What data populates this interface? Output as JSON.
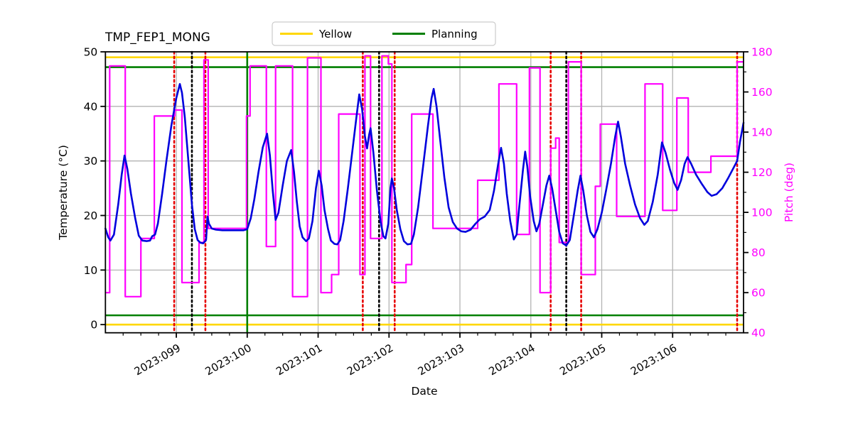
{
  "title": "TMP_FEP1_MONG",
  "legend": {
    "items": [
      {
        "label": "Yellow",
        "color": "#ffd700"
      },
      {
        "label": "Planning",
        "color": "#007f00"
      }
    ]
  },
  "colors": {
    "temperature_line": "#0000dd",
    "pitch_line": "#ff00ff",
    "yellow_limit": "#ffd700",
    "planning_limit": "#007f00",
    "red_event": "#e60000",
    "black_event": "#000000",
    "grid": "#b3b3b3",
    "axis": "#000000"
  },
  "chart_data": {
    "type": "line",
    "title": "TMP_FEP1_MONG",
    "xlabel": "Date",
    "ylabel_left": "Temperature (°C)",
    "ylabel_right": "Pitch (deg)",
    "x_range": [
      98,
      107
    ],
    "x_ticks": {
      "days": [
        99,
        100,
        101,
        102,
        103,
        104,
        105,
        106
      ],
      "labels": [
        "2023:099",
        "2023:100",
        "2023:101",
        "2023:102",
        "2023:103",
        "2023:104",
        "2023:105",
        "2023:106"
      ],
      "minor_step": 0.25
    },
    "y_left": {
      "range": [
        -1.5,
        50
      ],
      "ticks": [
        0,
        10,
        20,
        30,
        40,
        50
      ]
    },
    "y_right": {
      "range": [
        40,
        180
      ],
      "ticks": [
        40,
        60,
        80,
        100,
        120,
        140,
        160,
        180
      ],
      "minor_step": 10
    },
    "grid": true,
    "series": [
      {
        "name": "Temperature",
        "axis": "left",
        "style": "smooth",
        "color": "#0000dd",
        "points": [
          [
            98.0,
            17.6
          ],
          [
            98.04,
            16.0
          ],
          [
            98.07,
            15.4
          ],
          [
            98.12,
            16.5
          ],
          [
            98.18,
            22.0
          ],
          [
            98.23,
            27.5
          ],
          [
            98.27,
            31.0
          ],
          [
            98.31,
            28.5
          ],
          [
            98.36,
            24.0
          ],
          [
            98.42,
            19.5
          ],
          [
            98.47,
            16.3
          ],
          [
            98.52,
            15.4
          ],
          [
            98.58,
            15.3
          ],
          [
            98.63,
            15.4
          ],
          [
            98.66,
            16.2
          ],
          [
            98.7,
            16.5
          ],
          [
            98.74,
            18.5
          ],
          [
            98.8,
            24.0
          ],
          [
            98.86,
            30.0
          ],
          [
            98.93,
            36.5
          ],
          [
            99.0,
            41.5
          ],
          [
            99.05,
            44.1
          ],
          [
            99.08,
            42.5
          ],
          [
            99.12,
            38.0
          ],
          [
            99.17,
            30.0
          ],
          [
            99.22,
            22.0
          ],
          [
            99.26,
            17.5
          ],
          [
            99.3,
            15.5
          ],
          [
            99.34,
            15.0
          ],
          [
            99.38,
            14.9
          ],
          [
            99.42,
            15.5
          ],
          [
            99.44,
            19.8
          ],
          [
            99.46,
            18.5
          ],
          [
            99.5,
            17.6
          ],
          [
            99.56,
            17.4
          ],
          [
            99.65,
            17.3
          ],
          [
            99.75,
            17.3
          ],
          [
            99.85,
            17.3
          ],
          [
            99.95,
            17.3
          ],
          [
            100.0,
            17.5
          ],
          [
            100.05,
            19.5
          ],
          [
            100.1,
            23.0
          ],
          [
            100.16,
            28.0
          ],
          [
            100.22,
            32.5
          ],
          [
            100.28,
            35.0
          ],
          [
            100.32,
            31.0
          ],
          [
            100.36,
            24.5
          ],
          [
            100.4,
            19.2
          ],
          [
            100.44,
            20.5
          ],
          [
            100.5,
            25.5
          ],
          [
            100.56,
            30.0
          ],
          [
            100.62,
            32.0
          ],
          [
            100.66,
            28.0
          ],
          [
            100.7,
            22.5
          ],
          [
            100.74,
            18.0
          ],
          [
            100.78,
            16.0
          ],
          [
            100.83,
            15.3
          ],
          [
            100.87,
            15.8
          ],
          [
            100.92,
            19.0
          ],
          [
            100.97,
            25.0
          ],
          [
            101.01,
            28.2
          ],
          [
            101.05,
            25.5
          ],
          [
            101.09,
            21.0
          ],
          [
            101.14,
            17.5
          ],
          [
            101.18,
            15.4
          ],
          [
            101.23,
            14.8
          ],
          [
            101.27,
            14.7
          ],
          [
            101.31,
            15.5
          ],
          [
            101.36,
            19.0
          ],
          [
            101.42,
            25.0
          ],
          [
            101.48,
            31.5
          ],
          [
            101.54,
            38.0
          ],
          [
            101.58,
            42.2
          ],
          [
            101.62,
            39.5
          ],
          [
            101.66,
            34.5
          ],
          [
            101.69,
            32.3
          ],
          [
            101.72,
            34.8
          ],
          [
            101.74,
            36.0
          ],
          [
            101.78,
            31.5
          ],
          [
            101.83,
            24.5
          ],
          [
            101.88,
            19.0
          ],
          [
            101.92,
            16.2
          ],
          [
            101.95,
            15.8
          ],
          [
            101.99,
            18.5
          ],
          [
            102.02,
            25.0
          ],
          [
            102.04,
            26.8
          ],
          [
            102.07,
            25.0
          ],
          [
            102.11,
            21.0
          ],
          [
            102.16,
            17.5
          ],
          [
            102.21,
            15.3
          ],
          [
            102.26,
            14.7
          ],
          [
            102.31,
            14.8
          ],
          [
            102.35,
            16.5
          ],
          [
            102.41,
            21.5
          ],
          [
            102.48,
            29.0
          ],
          [
            102.55,
            36.5
          ],
          [
            102.6,
            41.5
          ],
          [
            102.63,
            43.2
          ],
          [
            102.67,
            40.0
          ],
          [
            102.72,
            34.0
          ],
          [
            102.78,
            27.0
          ],
          [
            102.84,
            21.5
          ],
          [
            102.9,
            18.8
          ],
          [
            102.96,
            17.6
          ],
          [
            103.02,
            17.1
          ],
          [
            103.08,
            17.0
          ],
          [
            103.15,
            17.4
          ],
          [
            103.22,
            18.5
          ],
          [
            103.28,
            19.3
          ],
          [
            103.35,
            19.8
          ],
          [
            103.42,
            21.0
          ],
          [
            103.48,
            24.5
          ],
          [
            103.54,
            29.5
          ],
          [
            103.58,
            32.4
          ],
          [
            103.62,
            29.5
          ],
          [
            103.66,
            24.0
          ],
          [
            103.71,
            19.0
          ],
          [
            103.76,
            15.6
          ],
          [
            103.8,
            16.5
          ],
          [
            103.84,
            22.0
          ],
          [
            103.89,
            28.5
          ],
          [
            103.92,
            31.7
          ],
          [
            103.95,
            29.0
          ],
          [
            103.99,
            23.5
          ],
          [
            104.04,
            19.0
          ],
          [
            104.08,
            17.1
          ],
          [
            104.12,
            18.5
          ],
          [
            104.17,
            22.0
          ],
          [
            104.22,
            25.5
          ],
          [
            104.26,
            27.3
          ],
          [
            104.3,
            25.0
          ],
          [
            104.35,
            21.0
          ],
          [
            104.4,
            17.0
          ],
          [
            104.45,
            14.9
          ],
          [
            104.5,
            14.5
          ],
          [
            104.55,
            15.5
          ],
          [
            104.6,
            19.5
          ],
          [
            104.66,
            24.5
          ],
          [
            104.7,
            27.3
          ],
          [
            104.74,
            24.5
          ],
          [
            104.79,
            20.0
          ],
          [
            104.84,
            17.0
          ],
          [
            104.89,
            16.0
          ],
          [
            104.94,
            17.5
          ],
          [
            105.0,
            20.5
          ],
          [
            105.06,
            24.5
          ],
          [
            105.13,
            29.5
          ],
          [
            105.19,
            34.5
          ],
          [
            105.23,
            37.2
          ],
          [
            105.27,
            34.5
          ],
          [
            105.33,
            29.5
          ],
          [
            105.4,
            25.5
          ],
          [
            105.47,
            22.0
          ],
          [
            105.54,
            19.5
          ],
          [
            105.6,
            18.3
          ],
          [
            105.65,
            19.0
          ],
          [
            105.72,
            22.5
          ],
          [
            105.79,
            27.5
          ],
          [
            105.85,
            33.4
          ],
          [
            105.9,
            31.5
          ],
          [
            105.96,
            28.5
          ],
          [
            106.02,
            26.0
          ],
          [
            106.07,
            24.7
          ],
          [
            106.12,
            26.5
          ],
          [
            106.17,
            29.5
          ],
          [
            106.21,
            30.7
          ],
          [
            106.26,
            29.5
          ],
          [
            106.33,
            27.5
          ],
          [
            106.41,
            25.8
          ],
          [
            106.49,
            24.3
          ],
          [
            106.55,
            23.6
          ],
          [
            106.62,
            23.9
          ],
          [
            106.7,
            25.0
          ],
          [
            106.78,
            26.8
          ],
          [
            106.85,
            28.5
          ],
          [
            106.91,
            30.0
          ],
          [
            106.95,
            33.5
          ],
          [
            107.0,
            37.0
          ]
        ]
      },
      {
        "name": "Pitch",
        "axis": "right",
        "style": "step",
        "color": "#ff00ff",
        "steps": [
          [
            98.0,
            60
          ],
          [
            98.06,
            173
          ],
          [
            98.28,
            58
          ],
          [
            98.5,
            87
          ],
          [
            98.69,
            148
          ],
          [
            98.98,
            151
          ],
          [
            99.08,
            65
          ],
          [
            99.32,
            85
          ],
          [
            99.39,
            176
          ],
          [
            99.45,
            92
          ],
          [
            99.99,
            148
          ],
          [
            100.04,
            173
          ],
          [
            100.27,
            83
          ],
          [
            100.4,
            173
          ],
          [
            100.64,
            58
          ],
          [
            100.85,
            177
          ],
          [
            101.04,
            60
          ],
          [
            101.19,
            69
          ],
          [
            101.29,
            149
          ],
          [
            101.59,
            69
          ],
          [
            101.66,
            178
          ],
          [
            101.74,
            87
          ],
          [
            101.9,
            178
          ],
          [
            101.99,
            174
          ],
          [
            102.04,
            65
          ],
          [
            102.24,
            74
          ],
          [
            102.32,
            149
          ],
          [
            102.62,
            92
          ],
          [
            103.25,
            116
          ],
          [
            103.55,
            164
          ],
          [
            103.8,
            89
          ],
          [
            103.98,
            172
          ],
          [
            104.13,
            60
          ],
          [
            104.28,
            132
          ],
          [
            104.35,
            137
          ],
          [
            104.4,
            85
          ],
          [
            104.53,
            175
          ],
          [
            104.71,
            69
          ],
          [
            104.91,
            113
          ],
          [
            104.98,
            144
          ],
          [
            105.21,
            98
          ],
          [
            105.61,
            164
          ],
          [
            105.86,
            101
          ],
          [
            106.06,
            157
          ],
          [
            106.22,
            120
          ],
          [
            106.54,
            128
          ],
          [
            106.91,
            175
          ],
          [
            107.0,
            175
          ]
        ]
      }
    ],
    "limit_lines": [
      {
        "name": "yellow-upper",
        "axis": "left",
        "value": 49.0,
        "color": "#ffd700"
      },
      {
        "name": "yellow-lower",
        "axis": "left",
        "value": 0.0,
        "color": "#ffd700"
      },
      {
        "name": "planning-upper",
        "axis": "left",
        "value": 47.2,
        "color": "#007f00"
      },
      {
        "name": "planning-lower",
        "axis": "left",
        "value": 1.7,
        "color": "#007f00"
      }
    ],
    "event_lines": [
      {
        "x": 100.0,
        "style": "solid",
        "color": "#007f00",
        "name": "planning-start"
      },
      {
        "x": 98.97,
        "style": "dotted",
        "color": "#e60000",
        "name": "red-event-1"
      },
      {
        "x": 99.41,
        "style": "dotted",
        "color": "#e60000",
        "name": "red-event-2"
      },
      {
        "x": 101.63,
        "style": "dotted",
        "color": "#e60000",
        "name": "red-event-3"
      },
      {
        "x": 102.08,
        "style": "dotted",
        "color": "#e60000",
        "name": "red-event-4"
      },
      {
        "x": 104.28,
        "style": "dotted",
        "color": "#e60000",
        "name": "red-event-5"
      },
      {
        "x": 104.71,
        "style": "dotted",
        "color": "#e60000",
        "name": "red-event-6"
      },
      {
        "x": 106.91,
        "style": "dotted",
        "color": "#e60000",
        "name": "red-event-7"
      },
      {
        "x": 99.22,
        "style": "dotted",
        "color": "#000000",
        "name": "black-event-1"
      },
      {
        "x": 101.86,
        "style": "dotted",
        "color": "#000000",
        "name": "black-event-2"
      },
      {
        "x": 104.5,
        "style": "dotted",
        "color": "#000000",
        "name": "black-event-3"
      }
    ]
  }
}
